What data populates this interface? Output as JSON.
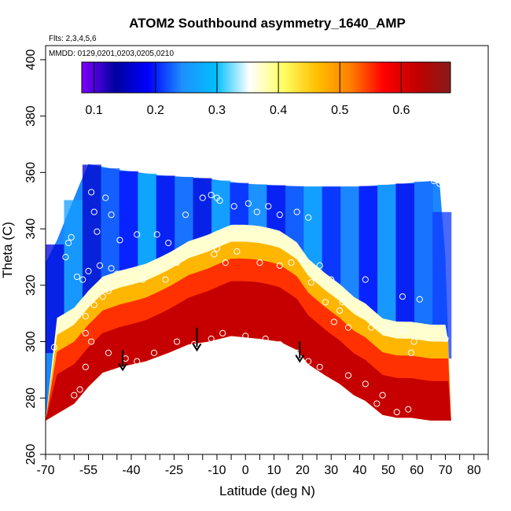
{
  "chart_data": {
    "type": "heatmap",
    "title": "ATOM2 Southbound asymmetry_1640_AMP",
    "subtitle_flights": "Flts: 2,3,4,5,6",
    "subtitle_dates": "MMDD: 0129,0201,0203,0205,0210",
    "xlabel": "Latitude (deg N)",
    "ylabel": "Theta (C)",
    "xlim": [
      -70,
      85
    ],
    "ylim": [
      260,
      405
    ],
    "x_ticks": [
      -70,
      -55,
      -40,
      -25,
      -10,
      0,
      10,
      20,
      30,
      40,
      50,
      60,
      70,
      80
    ],
    "x_minor_ticks": [
      -65,
      -60,
      -50,
      -45,
      -35,
      -30,
      -20,
      -15,
      -5,
      5,
      15,
      25,
      35,
      45,
      55,
      65,
      75,
      85
    ],
    "y_ticks": [
      260,
      280,
      300,
      320,
      340,
      360,
      380,
      400
    ],
    "colorbar": {
      "ticks": [
        0.1,
        0.2,
        0.3,
        0.4,
        0.5,
        0.6
      ],
      "range": [
        0.08,
        0.68
      ],
      "colors": [
        "#7f00ff",
        "#0000a0",
        "#0000ff",
        "#1e90ff",
        "#00bfff",
        "#ffffff",
        "#ffff66",
        "#ffc000",
        "#ff8000",
        "#ff0000",
        "#c00000",
        "#8b1a1a"
      ]
    },
    "contour_bands": [
      {
        "theta_top": 298,
        "theta_bottom": 272,
        "value": 0.62
      },
      {
        "theta_top": 306,
        "theta_bottom": 298,
        "value": 0.55
      },
      {
        "theta_top": 312,
        "theta_bottom": 306,
        "value": 0.47
      },
      {
        "theta_top": 318,
        "theta_bottom": 312,
        "value": 0.37
      }
    ],
    "domain_top": [
      {
        "lat": -70,
        "theta": 328
      },
      {
        "lat": -66,
        "theta": 336
      },
      {
        "lat": -62,
        "theta": 346
      },
      {
        "lat": -58,
        "theta": 356
      },
      {
        "lat": -55,
        "theta": 363
      },
      {
        "lat": -45,
        "theta": 361
      },
      {
        "lat": -30,
        "theta": 359
      },
      {
        "lat": -15,
        "theta": 358
      },
      {
        "lat": 0,
        "theta": 356
      },
      {
        "lat": 20,
        "theta": 355
      },
      {
        "lat": 40,
        "theta": 355
      },
      {
        "lat": 55,
        "theta": 356
      },
      {
        "lat": 65,
        "theta": 357
      },
      {
        "lat": 68,
        "theta": 356
      },
      {
        "lat": 70,
        "theta": 330
      },
      {
        "lat": 71,
        "theta": 300
      },
      {
        "lat": 72,
        "theta": 272
      }
    ],
    "tropopause_floor": [
      {
        "lat": -70,
        "theta": 272
      },
      {
        "lat": -60,
        "theta": 278
      },
      {
        "lat": -55,
        "theta": 284
      },
      {
        "lat": -50,
        "theta": 289
      },
      {
        "lat": -44,
        "theta": 291
      },
      {
        "lat": -35,
        "theta": 293
      },
      {
        "lat": -27,
        "theta": 296
      },
      {
        "lat": -20,
        "theta": 299
      },
      {
        "lat": -13,
        "theta": 300
      },
      {
        "lat": -5,
        "theta": 302
      },
      {
        "lat": 5,
        "theta": 301
      },
      {
        "lat": 12,
        "theta": 300
      },
      {
        "lat": 18,
        "theta": 297
      },
      {
        "lat": 22,
        "theta": 292
      },
      {
        "lat": 28,
        "theta": 288
      },
      {
        "lat": 33,
        "theta": 285
      },
      {
        "lat": 38,
        "theta": 281
      },
      {
        "lat": 42,
        "theta": 279
      },
      {
        "lat": 48,
        "theta": 274
      },
      {
        "lat": 53,
        "theta": 273
      },
      {
        "lat": 58,
        "theta": 273
      },
      {
        "lat": 65,
        "theta": 272
      },
      {
        "lat": 72,
        "theta": 272
      }
    ],
    "arrows": [
      {
        "lat": -43,
        "theta_from": 297,
        "theta_to": 290
      },
      {
        "lat": -17,
        "theta_from": 305,
        "theta_to": 297
      },
      {
        "lat": 19,
        "theta_from": 300,
        "theta_to": 293
      }
    ],
    "samples": [
      {
        "lat": -54,
        "theta": 353
      },
      {
        "lat": -49,
        "theta": 351
      },
      {
        "lat": -53,
        "theta": 346
      },
      {
        "lat": -47,
        "theta": 345
      },
      {
        "lat": -61,
        "theta": 337
      },
      {
        "lat": -62,
        "theta": 335
      },
      {
        "lat": -52,
        "theta": 339
      },
      {
        "lat": -44,
        "theta": 336
      },
      {
        "lat": -38,
        "theta": 338
      },
      {
        "lat": -31,
        "theta": 338
      },
      {
        "lat": -27,
        "theta": 335
      },
      {
        "lat": -21,
        "theta": 345
      },
      {
        "lat": -15,
        "theta": 351
      },
      {
        "lat": -12,
        "theta": 352
      },
      {
        "lat": -10,
        "theta": 351
      },
      {
        "lat": -9,
        "theta": 350
      },
      {
        "lat": -4,
        "theta": 348
      },
      {
        "lat": 1,
        "theta": 349
      },
      {
        "lat": 4,
        "theta": 346
      },
      {
        "lat": 8,
        "theta": 348
      },
      {
        "lat": 12,
        "theta": 345
      },
      {
        "lat": 18,
        "theta": 346
      },
      {
        "lat": 22,
        "theta": 344
      },
      {
        "lat": 66,
        "theta": 357
      },
      {
        "lat": 68,
        "theta": 356
      },
      {
        "lat": -63,
        "theta": 330
      },
      {
        "lat": -59,
        "theta": 323
      },
      {
        "lat": -57,
        "theta": 322
      },
      {
        "lat": -55,
        "theta": 325
      },
      {
        "lat": -51,
        "theta": 327
      },
      {
        "lat": -47,
        "theta": 326
      },
      {
        "lat": -45,
        "theta": 324
      },
      {
        "lat": -49,
        "theta": 321
      },
      {
        "lat": -48,
        "theta": 318
      },
      {
        "lat": -50,
        "theta": 316
      },
      {
        "lat": -36,
        "theta": 322
      },
      {
        "lat": -31,
        "theta": 326
      },
      {
        "lat": -28,
        "theta": 322
      },
      {
        "lat": -24,
        "theta": 328
      },
      {
        "lat": -7,
        "theta": 328
      },
      {
        "lat": -11,
        "theta": 331
      },
      {
        "lat": -10,
        "theta": 333
      },
      {
        "lat": -3,
        "theta": 332
      },
      {
        "lat": 5,
        "theta": 328
      },
      {
        "lat": 12,
        "theta": 327
      },
      {
        "lat": 16,
        "theta": 328
      },
      {
        "lat": 20,
        "theta": 329
      },
      {
        "lat": 26,
        "theta": 327
      },
      {
        "lat": 30,
        "theta": 322
      },
      {
        "lat": 42,
        "theta": 322
      },
      {
        "lat": 23,
        "theta": 321
      },
      {
        "lat": -53,
        "theta": 313
      },
      {
        "lat": -56,
        "theta": 309
      },
      {
        "lat": -56,
        "theta": 303
      },
      {
        "lat": -54,
        "theta": 300
      },
      {
        "lat": -67,
        "theta": 298
      },
      {
        "lat": -56,
        "theta": 291
      },
      {
        "lat": -48,
        "theta": 296
      },
      {
        "lat": -42,
        "theta": 294
      },
      {
        "lat": -38,
        "theta": 293
      },
      {
        "lat": -32,
        "theta": 296
      },
      {
        "lat": -24,
        "theta": 300
      },
      {
        "lat": -18,
        "theta": 299
      },
      {
        "lat": -12,
        "theta": 301
      },
      {
        "lat": -8,
        "theta": 303
      },
      {
        "lat": 0,
        "theta": 302
      },
      {
        "lat": 7,
        "theta": 301
      },
      {
        "lat": 12,
        "theta": 299
      },
      {
        "lat": 18,
        "theta": 296
      },
      {
        "lat": 22,
        "theta": 293
      },
      {
        "lat": 26,
        "theta": 291
      },
      {
        "lat": 28,
        "theta": 314
      },
      {
        "lat": 34,
        "theta": 314
      },
      {
        "lat": 31,
        "theta": 307
      },
      {
        "lat": 36,
        "theta": 305
      },
      {
        "lat": 44,
        "theta": 305
      },
      {
        "lat": 50,
        "theta": 305
      },
      {
        "lat": 55,
        "theta": 304
      },
      {
        "lat": 59,
        "theta": 300
      },
      {
        "lat": 58,
        "theta": 296
      },
      {
        "lat": 70,
        "theta": 301
      },
      {
        "lat": 61,
        "theta": 315
      },
      {
        "lat": 55,
        "theta": 316
      },
      {
        "lat": 33,
        "theta": 311
      },
      {
        "lat": 36,
        "theta": 288
      },
      {
        "lat": 42,
        "theta": 285
      },
      {
        "lat": 46,
        "theta": 278
      },
      {
        "lat": 53,
        "theta": 275
      },
      {
        "lat": 57,
        "theta": 276
      },
      {
        "lat": 48,
        "theta": 281
      },
      {
        "lat": -58,
        "theta": 283
      },
      {
        "lat": -60,
        "theta": 281
      }
    ]
  }
}
